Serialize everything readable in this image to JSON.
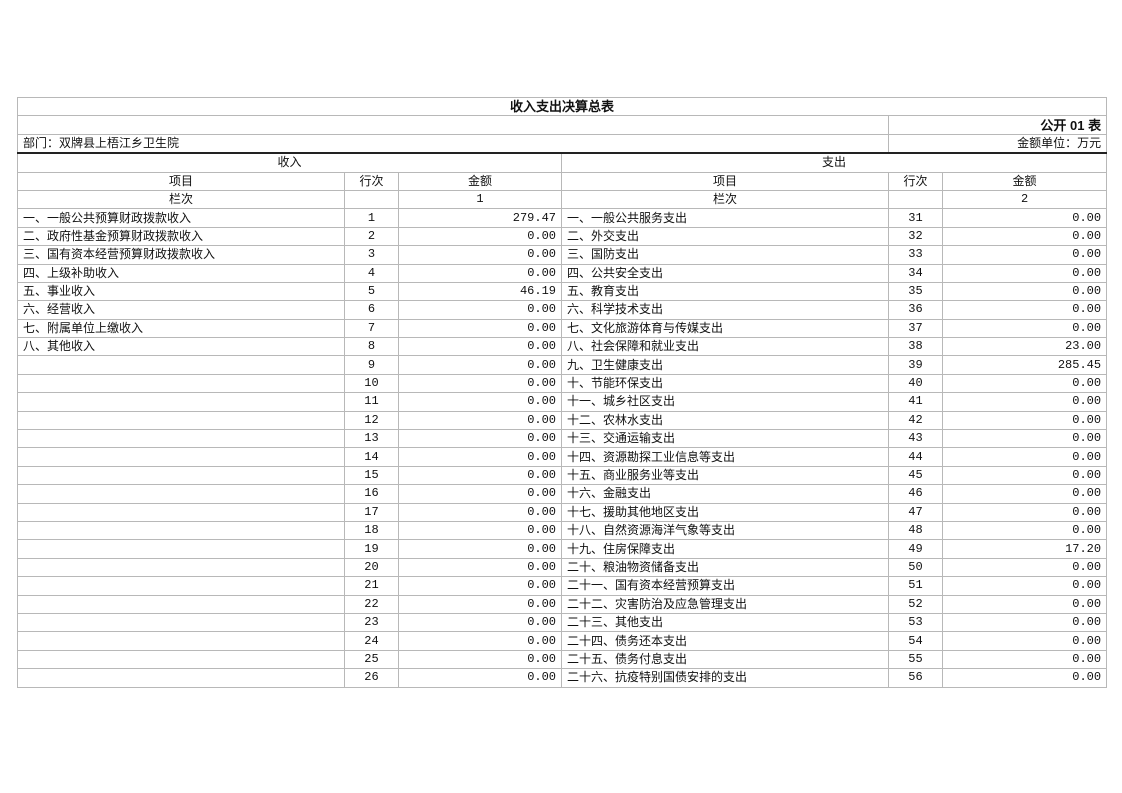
{
  "title": "收入支出决算总表",
  "form_code": "公开 01 表",
  "department": "部门：双牌县上梧江乡卫生院",
  "unit": "金额单位：万元",
  "income_header": "收入",
  "expense_header": "支出",
  "col_item": "项目",
  "col_line": "行次",
  "col_amount": "金额",
  "col_index_label": "栏次",
  "income_col_index": "1",
  "expense_col_index": "2",
  "rows": [
    {
      "in_item": "一、一般公共预算财政拨款收入",
      "in_line": "1",
      "in_amt": "279.47",
      "ex_item": "一、一般公共服务支出",
      "ex_line": "31",
      "ex_amt": "0.00"
    },
    {
      "in_item": "二、政府性基金预算财政拨款收入",
      "in_line": "2",
      "in_amt": "0.00",
      "ex_item": "二、外交支出",
      "ex_line": "32",
      "ex_amt": "0.00"
    },
    {
      "in_item": "三、国有资本经营预算财政拨款收入",
      "in_line": "3",
      "in_amt": "0.00",
      "ex_item": "三、国防支出",
      "ex_line": "33",
      "ex_amt": "0.00"
    },
    {
      "in_item": "四、上级补助收入",
      "in_line": "4",
      "in_amt": "0.00",
      "ex_item": "四、公共安全支出",
      "ex_line": "34",
      "ex_amt": "0.00"
    },
    {
      "in_item": "五、事业收入",
      "in_line": "5",
      "in_amt": "46.19",
      "ex_item": "五、教育支出",
      "ex_line": "35",
      "ex_amt": "0.00"
    },
    {
      "in_item": "六、经营收入",
      "in_line": "6",
      "in_amt": "0.00",
      "ex_item": "六、科学技术支出",
      "ex_line": "36",
      "ex_amt": "0.00"
    },
    {
      "in_item": "七、附属单位上缴收入",
      "in_line": "7",
      "in_amt": "0.00",
      "ex_item": "七、文化旅游体育与传媒支出",
      "ex_line": "37",
      "ex_amt": "0.00"
    },
    {
      "in_item": "八、其他收入",
      "in_line": "8",
      "in_amt": "0.00",
      "ex_item": "八、社会保障和就业支出",
      "ex_line": "38",
      "ex_amt": "23.00"
    },
    {
      "in_item": "",
      "in_line": "9",
      "in_amt": "0.00",
      "ex_item": "九、卫生健康支出",
      "ex_line": "39",
      "ex_amt": "285.45"
    },
    {
      "in_item": "",
      "in_line": "10",
      "in_amt": "0.00",
      "ex_item": "十、节能环保支出",
      "ex_line": "40",
      "ex_amt": "0.00"
    },
    {
      "in_item": "",
      "in_line": "11",
      "in_amt": "0.00",
      "ex_item": "十一、城乡社区支出",
      "ex_line": "41",
      "ex_amt": "0.00"
    },
    {
      "in_item": "",
      "in_line": "12",
      "in_amt": "0.00",
      "ex_item": "十二、农林水支出",
      "ex_line": "42",
      "ex_amt": "0.00"
    },
    {
      "in_item": "",
      "in_line": "13",
      "in_amt": "0.00",
      "ex_item": "十三、交通运输支出",
      "ex_line": "43",
      "ex_amt": "0.00"
    },
    {
      "in_item": "",
      "in_line": "14",
      "in_amt": "0.00",
      "ex_item": "十四、资源勘探工业信息等支出",
      "ex_line": "44",
      "ex_amt": "0.00"
    },
    {
      "in_item": "",
      "in_line": "15",
      "in_amt": "0.00",
      "ex_item": "十五、商业服务业等支出",
      "ex_line": "45",
      "ex_amt": "0.00"
    },
    {
      "in_item": "",
      "in_line": "16",
      "in_amt": "0.00",
      "ex_item": "十六、金融支出",
      "ex_line": "46",
      "ex_amt": "0.00"
    },
    {
      "in_item": "",
      "in_line": "17",
      "in_amt": "0.00",
      "ex_item": "十七、援助其他地区支出",
      "ex_line": "47",
      "ex_amt": "0.00"
    },
    {
      "in_item": "",
      "in_line": "18",
      "in_amt": "0.00",
      "ex_item": "十八、自然资源海洋气象等支出",
      "ex_line": "48",
      "ex_amt": "0.00"
    },
    {
      "in_item": "",
      "in_line": "19",
      "in_amt": "0.00",
      "ex_item": "十九、住房保障支出",
      "ex_line": "49",
      "ex_amt": "17.20"
    },
    {
      "in_item": "",
      "in_line": "20",
      "in_amt": "0.00",
      "ex_item": "二十、粮油物资储备支出",
      "ex_line": "50",
      "ex_amt": "0.00"
    },
    {
      "in_item": "",
      "in_line": "21",
      "in_amt": "0.00",
      "ex_item": "二十一、国有资本经营预算支出",
      "ex_line": "51",
      "ex_amt": "0.00"
    },
    {
      "in_item": "",
      "in_line": "22",
      "in_amt": "0.00",
      "ex_item": "二十二、灾害防治及应急管理支出",
      "ex_line": "52",
      "ex_amt": "0.00"
    },
    {
      "in_item": "",
      "in_line": "23",
      "in_amt": "0.00",
      "ex_item": "二十三、其他支出",
      "ex_line": "53",
      "ex_amt": "0.00"
    },
    {
      "in_item": "",
      "in_line": "24",
      "in_amt": "0.00",
      "ex_item": "二十四、债务还本支出",
      "ex_line": "54",
      "ex_amt": "0.00"
    },
    {
      "in_item": "",
      "in_line": "25",
      "in_amt": "0.00",
      "ex_item": "二十五、债务付息支出",
      "ex_line": "55",
      "ex_amt": "0.00"
    },
    {
      "in_item": "",
      "in_line": "26",
      "in_amt": "0.00",
      "ex_item": "二十六、抗疫特别国债安排的支出",
      "ex_line": "56",
      "ex_amt": "0.00"
    }
  ]
}
